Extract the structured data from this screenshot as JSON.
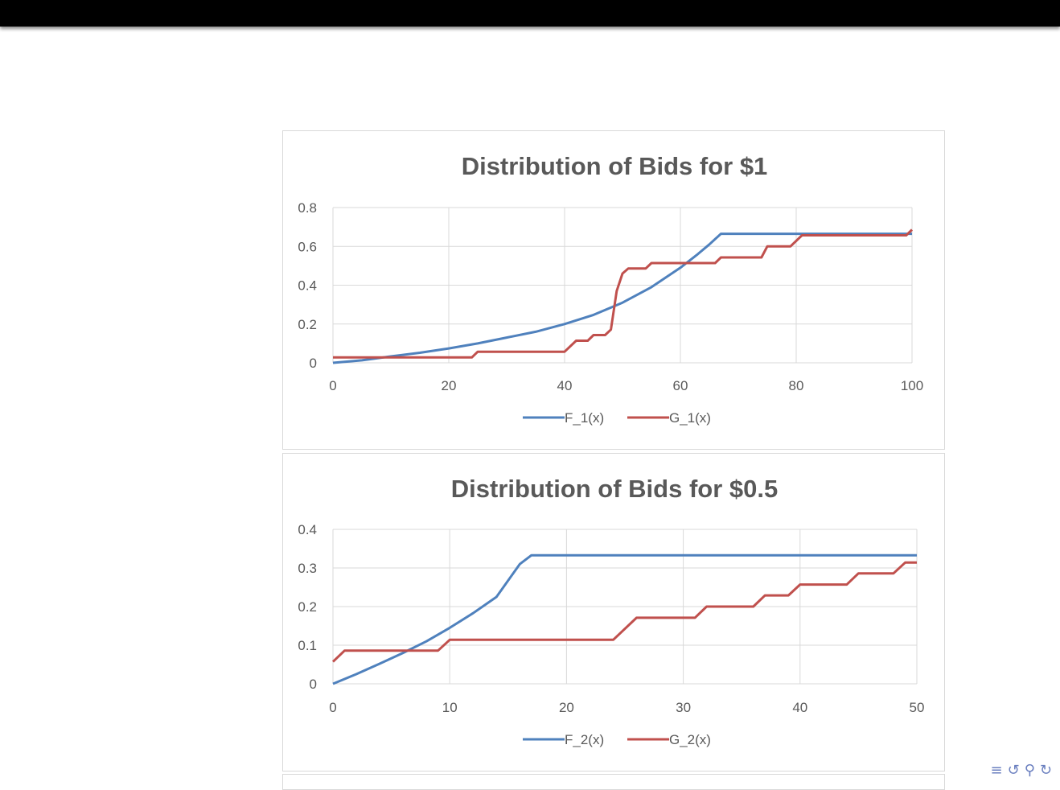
{
  "charts": [
    {
      "type": "line",
      "title": "Distribution of Bids for $1",
      "xlim": [
        0,
        100
      ],
      "ylim": [
        0,
        0.8
      ],
      "x_ticks": [
        0,
        20,
        40,
        60,
        80,
        100
      ],
      "y_ticks": [
        0,
        0.2,
        0.4,
        0.6,
        0.8
      ],
      "x_tick_labels": [
        "0",
        "20",
        "40",
        "60",
        "80",
        "100"
      ],
      "y_tick_labels": [
        "0",
        "0.2",
        "0.4",
        "0.6",
        "0.8"
      ],
      "grid": true,
      "legend_position": "bottom",
      "series": [
        {
          "name": "F_1(x)",
          "color": "#4f81bd",
          "points": [
            [
              0,
              0
            ],
            [
              5,
              0.013
            ],
            [
              10,
              0.033
            ],
            [
              15,
              0.052
            ],
            [
              20,
              0.074
            ],
            [
              25,
              0.1
            ],
            [
              30,
              0.13
            ],
            [
              35,
              0.16
            ],
            [
              40,
              0.2
            ],
            [
              45,
              0.247
            ],
            [
              50,
              0.31
            ],
            [
              55,
              0.39
            ],
            [
              60,
              0.49
            ],
            [
              63,
              0.56
            ],
            [
              65,
              0.61
            ],
            [
              67,
              0.665
            ],
            [
              80,
              0.665
            ],
            [
              100,
              0.665
            ]
          ]
        },
        {
          "name": "G_1(x)",
          "color": "#c0504d",
          "points": [
            [
              0,
              0.028
            ],
            [
              24,
              0.028
            ],
            [
              25,
              0.057
            ],
            [
              40,
              0.057
            ],
            [
              42,
              0.114
            ],
            [
              44,
              0.114
            ],
            [
              45,
              0.143
            ],
            [
              47,
              0.143
            ],
            [
              48,
              0.171
            ],
            [
              49,
              0.37
            ],
            [
              50,
              0.46
            ],
            [
              51,
              0.486
            ],
            [
              54,
              0.486
            ],
            [
              55,
              0.514
            ],
            [
              66,
              0.514
            ],
            [
              67,
              0.543
            ],
            [
              74,
              0.543
            ],
            [
              75,
              0.6
            ],
            [
              79,
              0.6
            ],
            [
              81,
              0.657
            ],
            [
              99,
              0.657
            ],
            [
              100,
              0.686
            ]
          ]
        }
      ]
    },
    {
      "type": "line",
      "title": "Distribution of Bids for $0.5",
      "xlim": [
        0,
        50
      ],
      "ylim": [
        0,
        0.4
      ],
      "x_ticks": [
        0,
        10,
        20,
        30,
        40,
        50
      ],
      "y_ticks": [
        0,
        0.1,
        0.2,
        0.3,
        0.4
      ],
      "x_tick_labels": [
        "0",
        "10",
        "20",
        "30",
        "40",
        "50"
      ],
      "y_tick_labels": [
        "0",
        "0.1",
        "0.2",
        "0.3",
        "0.4"
      ],
      "grid": true,
      "legend_position": "bottom",
      "series": [
        {
          "name": "F_2(x)",
          "color": "#4f81bd",
          "points": [
            [
              0,
              0
            ],
            [
              2,
              0.025
            ],
            [
              4,
              0.052
            ],
            [
              6,
              0.08
            ],
            [
              8,
              0.11
            ],
            [
              10,
              0.145
            ],
            [
              12,
              0.183
            ],
            [
              14,
              0.225
            ],
            [
              16,
              0.31
            ],
            [
              17,
              0.333
            ],
            [
              50,
              0.333
            ]
          ]
        },
        {
          "name": "G_2(x)",
          "color": "#c0504d",
          "points": [
            [
              0,
              0.057
            ],
            [
              1,
              0.086
            ],
            [
              9,
              0.086
            ],
            [
              10,
              0.114
            ],
            [
              24,
              0.114
            ],
            [
              26,
              0.171
            ],
            [
              31,
              0.171
            ],
            [
              32,
              0.2
            ],
            [
              36,
              0.2
            ],
            [
              37,
              0.229
            ],
            [
              39,
              0.229
            ],
            [
              40,
              0.257
            ],
            [
              44,
              0.257
            ],
            [
              45,
              0.286
            ],
            [
              48,
              0.286
            ],
            [
              49,
              0.314
            ],
            [
              50,
              0.314
            ]
          ]
        }
      ]
    }
  ],
  "nav_icons": [
    "align-icon",
    "undo-icon",
    "search-icon",
    "redo-icon"
  ]
}
